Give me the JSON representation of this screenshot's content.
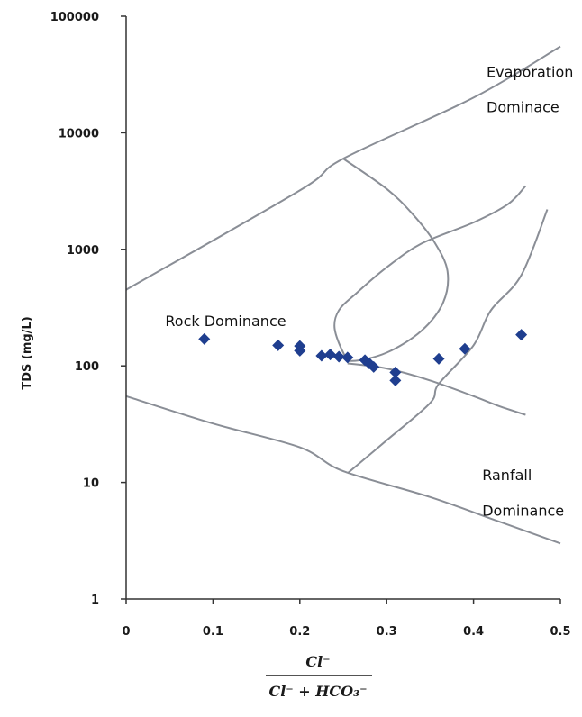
{
  "chart_data": {
    "type": "scatter",
    "title": "",
    "ylabel": "TDS (mg/L)",
    "xlabel": {
      "numerator": "Cl⁻",
      "denominator": "Cl⁻ + HCO₃⁻"
    },
    "x_scale": "linear",
    "y_scale": "log",
    "xlim": [
      0,
      0.5
    ],
    "ylim": [
      1,
      100000
    ],
    "x_ticks": [
      {
        "value": 0,
        "label": "0"
      },
      {
        "value": 0.1,
        "label": "0.1"
      },
      {
        "value": 0.2,
        "label": "0.2"
      },
      {
        "value": 0.3,
        "label": "0.3"
      },
      {
        "value": 0.4,
        "label": "0.4"
      },
      {
        "value": 0.5,
        "label": "0.5"
      }
    ],
    "y_ticks": [
      {
        "value": 1,
        "label": "1"
      },
      {
        "value": 10,
        "label": "10"
      },
      {
        "value": 100,
        "label": "100"
      },
      {
        "value": 1000,
        "label": "1000"
      },
      {
        "value": 10000,
        "label": "10000"
      },
      {
        "value": 100000,
        "label": "100000"
      }
    ],
    "grid": false,
    "legend": "none",
    "colors": {
      "points": "#1f3e8f",
      "curves": "#8a8e96",
      "axes": "#333333"
    },
    "points": [
      {
        "x": 0.09,
        "y": 170
      },
      {
        "x": 0.175,
        "y": 150
      },
      {
        "x": 0.2,
        "y": 148
      },
      {
        "x": 0.2,
        "y": 135
      },
      {
        "x": 0.225,
        "y": 122
      },
      {
        "x": 0.235,
        "y": 125
      },
      {
        "x": 0.245,
        "y": 120
      },
      {
        "x": 0.255,
        "y": 118
      },
      {
        "x": 0.275,
        "y": 112
      },
      {
        "x": 0.28,
        "y": 105
      },
      {
        "x": 0.285,
        "y": 98
      },
      {
        "x": 0.31,
        "y": 88
      },
      {
        "x": 0.31,
        "y": 75
      },
      {
        "x": 0.36,
        "y": 115
      },
      {
        "x": 0.39,
        "y": 140
      },
      {
        "x": 0.455,
        "y": 185
      }
    ],
    "boundary_curves": [
      {
        "name": "upper-envelope",
        "points": [
          [
            0,
            450
          ],
          [
            0.2,
            3200
          ],
          [
            0.25,
            6000
          ],
          [
            0.4,
            20000
          ],
          [
            0.5,
            55000
          ]
        ]
      },
      {
        "name": "lower-envelope",
        "points": [
          [
            0,
            55
          ],
          [
            0.1,
            32
          ],
          [
            0.2,
            20
          ],
          [
            0.25,
            12.5
          ],
          [
            0.35,
            7.5
          ],
          [
            0.43,
            4.6
          ],
          [
            0.5,
            3
          ]
        ]
      },
      {
        "name": "inner-left-curve",
        "points": [
          [
            0.25,
            6000
          ],
          [
            0.3,
            3300
          ],
          [
            0.33,
            2000
          ],
          [
            0.355,
            1150
          ],
          [
            0.37,
            650
          ],
          [
            0.365,
            350
          ],
          [
            0.34,
            200
          ],
          [
            0.3,
            130
          ],
          [
            0.26,
            110
          ],
          [
            0.25,
            130
          ],
          [
            0.24,
            210
          ],
          [
            0.245,
            300
          ],
          [
            0.265,
            420
          ],
          [
            0.3,
            700
          ],
          [
            0.34,
            1120
          ],
          [
            0.4,
            1700
          ],
          [
            0.44,
            2450
          ],
          [
            0.46,
            3500
          ]
        ]
      },
      {
        "name": "inner-right-curve",
        "points": [
          [
            0.255,
            12
          ],
          [
            0.3,
            23
          ],
          [
            0.35,
            48
          ],
          [
            0.36,
            70
          ],
          [
            0.4,
            150
          ],
          [
            0.42,
            300
          ],
          [
            0.455,
            600
          ],
          [
            0.485,
            2200
          ]
        ]
      },
      {
        "name": "lower-right-tail",
        "points": [
          [
            0.255,
            105
          ],
          [
            0.3,
            95
          ],
          [
            0.35,
            75
          ],
          [
            0.4,
            55
          ],
          [
            0.43,
            45
          ],
          [
            0.46,
            38
          ]
        ]
      }
    ],
    "annotations": [
      {
        "text": "Evaporation",
        "x": 0.415,
        "y": 30000,
        "anchor": "start"
      },
      {
        "text": "Dominace",
        "x": 0.415,
        "y": 15000,
        "anchor": "start"
      },
      {
        "text": "Rock Dominance",
        "x": 0.045,
        "y": 220,
        "anchor": "start"
      },
      {
        "text": "Ranfall",
        "x": 0.41,
        "y": 10.5,
        "anchor": "start"
      },
      {
        "text": "Dominance",
        "x": 0.41,
        "y": 5.2,
        "anchor": "start"
      }
    ]
  }
}
